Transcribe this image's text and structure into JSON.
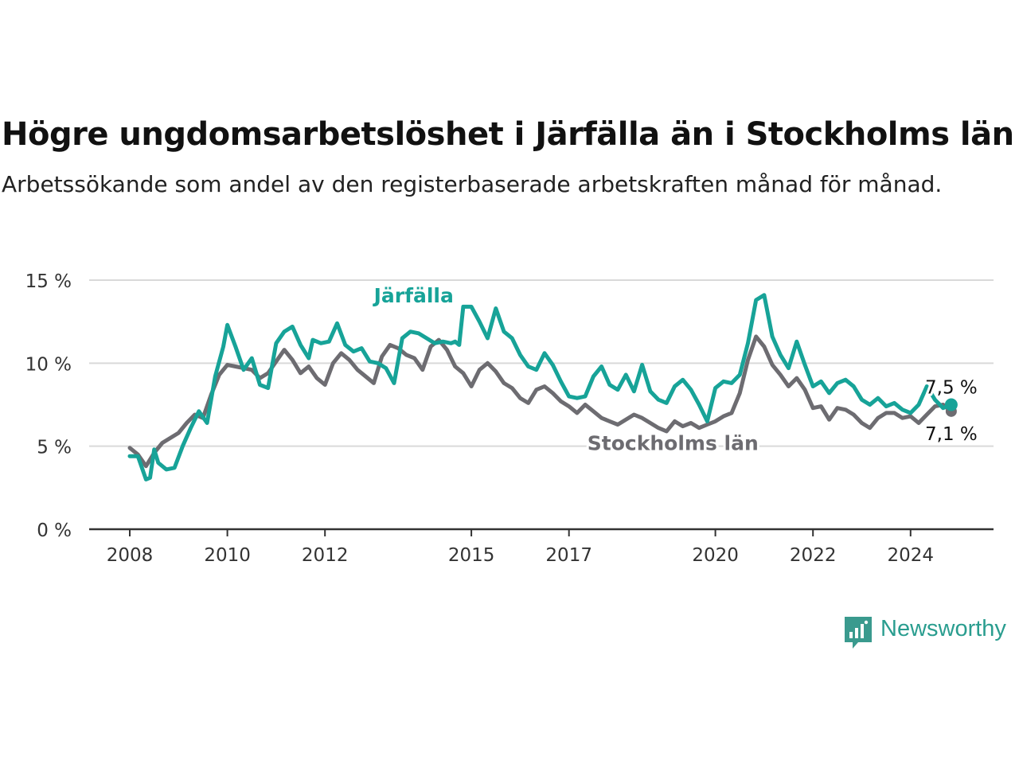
{
  "title": "Högre ungdomsarbetslöshet i Järfälla än i Stockholms län",
  "subtitle": "Arbetssökande som andel av den registerbaserade arbetskraften månad för månad.",
  "brand": "Newsworthy",
  "colors": {
    "jarfalla": "#17a398",
    "lan": "#6d6c71",
    "grid": "#d9d9d9",
    "axis": "#333333",
    "brand": "#3a9a8e"
  },
  "chart_data": {
    "type": "line",
    "title": "Högre ungdomsarbetslöshet i Järfälla än i Stockholms län",
    "subtitle": "Arbetssökande som andel av den registerbaserade arbetskraften månad för månad.",
    "xlabel": "",
    "ylabel": "",
    "y_unit": "%",
    "xlim": [
      "2008-01",
      "2025-04"
    ],
    "ylim": [
      0,
      15
    ],
    "y_ticks": [
      0,
      5,
      10,
      15
    ],
    "y_tick_labels": [
      "0 %",
      "5 %",
      "10 %",
      "15 %"
    ],
    "x_ticks": [
      "2008",
      "2010",
      "2012",
      "2015",
      "2017",
      "2020",
      "2022",
      "2024"
    ],
    "x_tick_dates": [
      "2008-01",
      "2010-01",
      "2012-01",
      "2015-01",
      "2017-01",
      "2020-01",
      "2022-01",
      "2024-01"
    ],
    "grid": "horizontal",
    "legend": "inline labels",
    "series": [
      {
        "name": "Järfälla",
        "color": "#17a398",
        "end_label": "7,5 %",
        "points": [
          [
            "2008-01",
            4.4
          ],
          [
            "2008-03",
            4.4
          ],
          [
            "2008-05",
            3.0
          ],
          [
            "2008-06",
            3.1
          ],
          [
            "2008-07",
            4.8
          ],
          [
            "2008-08",
            4.0
          ],
          [
            "2008-10",
            3.6
          ],
          [
            "2008-12",
            3.7
          ],
          [
            "2009-02",
            5.0
          ],
          [
            "2009-04",
            6.1
          ],
          [
            "2009-06",
            7.1
          ],
          [
            "2009-08",
            6.4
          ],
          [
            "2009-10",
            9.2
          ],
          [
            "2009-12",
            11.0
          ],
          [
            "2010-01",
            12.3
          ],
          [
            "2010-03",
            11.0
          ],
          [
            "2010-05",
            9.6
          ],
          [
            "2010-07",
            10.3
          ],
          [
            "2010-09",
            8.7
          ],
          [
            "2010-11",
            8.5
          ],
          [
            "2011-01",
            11.2
          ],
          [
            "2011-03",
            11.9
          ],
          [
            "2011-05",
            12.2
          ],
          [
            "2011-07",
            11.1
          ],
          [
            "2011-09",
            10.3
          ],
          [
            "2011-10",
            11.4
          ],
          [
            "2011-12",
            11.2
          ],
          [
            "2012-02",
            11.3
          ],
          [
            "2012-04",
            12.4
          ],
          [
            "2012-06",
            11.1
          ],
          [
            "2012-08",
            10.7
          ],
          [
            "2012-10",
            10.9
          ],
          [
            "2012-12",
            10.1
          ],
          [
            "2013-02",
            10.0
          ],
          [
            "2013-04",
            9.7
          ],
          [
            "2013-06",
            8.8
          ],
          [
            "2013-08",
            11.5
          ],
          [
            "2013-10",
            11.9
          ],
          [
            "2013-12",
            11.8
          ],
          [
            "2014-02",
            11.5
          ],
          [
            "2014-04",
            11.2
          ],
          [
            "2014-06",
            11.3
          ],
          [
            "2014-08",
            11.2
          ],
          [
            "2014-09",
            11.3
          ],
          [
            "2014-10",
            11.1
          ],
          [
            "2014-11",
            13.4
          ]
        ],
        "points_2": [
          [
            "2015-01",
            13.4
          ],
          [
            "2015-03",
            12.5
          ],
          [
            "2015-05",
            11.5
          ],
          [
            "2015-07",
            13.3
          ],
          [
            "2015-09",
            11.9
          ],
          [
            "2015-11",
            11.5
          ],
          [
            "2016-01",
            10.5
          ],
          [
            "2016-03",
            9.8
          ],
          [
            "2016-05",
            9.6
          ],
          [
            "2016-07",
            10.6
          ],
          [
            "2016-09",
            9.9
          ],
          [
            "2016-11",
            8.9
          ],
          [
            "2017-01",
            8.0
          ],
          [
            "2017-03",
            7.9
          ],
          [
            "2017-05",
            8.0
          ],
          [
            "2017-07",
            9.2
          ],
          [
            "2017-09",
            9.8
          ],
          [
            "2017-11",
            8.7
          ],
          [
            "2018-01",
            8.4
          ],
          [
            "2018-03",
            9.3
          ],
          [
            "2018-05",
            8.3
          ],
          [
            "2018-07",
            9.9
          ],
          [
            "2018-09",
            8.3
          ],
          [
            "2018-11",
            7.8
          ],
          [
            "2019-01",
            7.6
          ],
          [
            "2019-03",
            8.6
          ],
          [
            "2019-05",
            9.0
          ],
          [
            "2019-07",
            8.4
          ],
          [
            "2019-09",
            7.5
          ],
          [
            "2019-11",
            6.5
          ],
          [
            "2020-01",
            8.5
          ],
          [
            "2020-03",
            8.9
          ],
          [
            "2020-05",
            8.8
          ],
          [
            "2020-07",
            9.3
          ],
          [
            "2020-09",
            11.2
          ],
          [
            "2020-11",
            13.8
          ],
          [
            "2021-01",
            14.1
          ],
          [
            "2021-03",
            11.6
          ],
          [
            "2021-05",
            10.5
          ],
          [
            "2021-07",
            9.7
          ],
          [
            "2021-09",
            11.3
          ],
          [
            "2021-11",
            9.9
          ],
          [
            "2022-01",
            8.6
          ],
          [
            "2022-03",
            8.9
          ],
          [
            "2022-05",
            8.2
          ],
          [
            "2022-07",
            8.8
          ],
          [
            "2022-09",
            9.0
          ],
          [
            "2022-11",
            8.6
          ],
          [
            "2023-01",
            7.8
          ],
          [
            "2023-03",
            7.5
          ],
          [
            "2023-05",
            7.9
          ],
          [
            "2023-07",
            7.4
          ],
          [
            "2023-09",
            7.6
          ],
          [
            "2023-11",
            7.2
          ],
          [
            "2024-01",
            7.0
          ],
          [
            "2024-03",
            7.5
          ],
          [
            "2024-05",
            8.6
          ],
          [
            "2024-07",
            7.8
          ],
          [
            "2024-09",
            7.3
          ],
          [
            "2024-11",
            7.5
          ]
        ]
      },
      {
        "name": "Stockholms län",
        "color": "#6d6c71",
        "end_label": "7,1 %",
        "points": [
          [
            "2008-01",
            4.9
          ],
          [
            "2008-03",
            4.5
          ],
          [
            "2008-05",
            3.8
          ],
          [
            "2008-07",
            4.6
          ],
          [
            "2008-09",
            5.2
          ],
          [
            "2008-11",
            5.5
          ],
          [
            "2009-01",
            5.8
          ],
          [
            "2009-03",
            6.4
          ],
          [
            "2009-05",
            6.9
          ],
          [
            "2009-07",
            6.7
          ],
          [
            "2009-09",
            8.1
          ],
          [
            "2009-11",
            9.3
          ],
          [
            "2010-01",
            9.9
          ],
          [
            "2010-03",
            9.8
          ],
          [
            "2010-05",
            9.7
          ],
          [
            "2010-07",
            9.6
          ],
          [
            "2010-09",
            9.1
          ],
          [
            "2010-11",
            9.4
          ],
          [
            "2011-01",
            10.1
          ],
          [
            "2011-03",
            10.8
          ],
          [
            "2011-05",
            10.2
          ],
          [
            "2011-07",
            9.4
          ],
          [
            "2011-09",
            9.8
          ],
          [
            "2011-11",
            9.1
          ],
          [
            "2012-01",
            8.7
          ],
          [
            "2012-03",
            10.0
          ],
          [
            "2012-05",
            10.6
          ],
          [
            "2012-07",
            10.2
          ],
          [
            "2012-09",
            9.6
          ],
          [
            "2012-11",
            9.2
          ],
          [
            "2013-01",
            8.8
          ],
          [
            "2013-03",
            10.4
          ],
          [
            "2013-05",
            11.1
          ],
          [
            "2013-07",
            10.9
          ],
          [
            "2013-09",
            10.5
          ],
          [
            "2013-11",
            10.3
          ],
          [
            "2014-01",
            9.6
          ],
          [
            "2014-03",
            11.0
          ],
          [
            "2014-05",
            11.4
          ],
          [
            "2014-07",
            10.8
          ],
          [
            "2014-09",
            9.8
          ],
          [
            "2014-11",
            9.4
          ],
          [
            "2015-01",
            8.6
          ],
          [
            "2015-03",
            9.6
          ],
          [
            "2015-05",
            10.0
          ],
          [
            "2015-07",
            9.5
          ],
          [
            "2015-09",
            8.8
          ],
          [
            "2015-11",
            8.5
          ],
          [
            "2016-01",
            7.9
          ],
          [
            "2016-03",
            7.6
          ],
          [
            "2016-05",
            8.4
          ],
          [
            "2016-07",
            8.6
          ],
          [
            "2016-09",
            8.2
          ],
          [
            "2016-11",
            7.7
          ],
          [
            "2017-01",
            7.4
          ],
          [
            "2017-03",
            7.0
          ],
          [
            "2017-05",
            7.5
          ],
          [
            "2017-07",
            7.1
          ],
          [
            "2017-09",
            6.7
          ],
          [
            "2017-11",
            6.5
          ],
          [
            "2018-01",
            6.3
          ],
          [
            "2018-03",
            6.6
          ],
          [
            "2018-05",
            6.9
          ],
          [
            "2018-07",
            6.7
          ],
          [
            "2018-09",
            6.4
          ],
          [
            "2018-11",
            6.1
          ],
          [
            "2019-01",
            5.9
          ],
          [
            "2019-03",
            6.5
          ],
          [
            "2019-05",
            6.2
          ],
          [
            "2019-07",
            6.4
          ],
          [
            "2019-09",
            6.1
          ],
          [
            "2019-11",
            6.3
          ],
          [
            "2020-01",
            6.5
          ],
          [
            "2020-03",
            6.8
          ],
          [
            "2020-05",
            7.0
          ],
          [
            "2020-07",
            8.2
          ],
          [
            "2020-09",
            10.2
          ],
          [
            "2020-11",
            11.6
          ],
          [
            "2021-01",
            11.0
          ],
          [
            "2021-03",
            9.9
          ],
          [
            "2021-05",
            9.3
          ],
          [
            "2021-07",
            8.6
          ],
          [
            "2021-09",
            9.1
          ],
          [
            "2021-11",
            8.4
          ],
          [
            "2022-01",
            7.3
          ],
          [
            "2022-03",
            7.4
          ],
          [
            "2022-05",
            6.6
          ],
          [
            "2022-07",
            7.3
          ],
          [
            "2022-09",
            7.2
          ],
          [
            "2022-11",
            6.9
          ],
          [
            "2023-01",
            6.4
          ],
          [
            "2023-03",
            6.1
          ],
          [
            "2023-05",
            6.7
          ],
          [
            "2023-07",
            7.0
          ],
          [
            "2023-09",
            7.0
          ],
          [
            "2023-11",
            6.7
          ],
          [
            "2024-01",
            6.8
          ],
          [
            "2024-03",
            6.4
          ],
          [
            "2024-05",
            6.9
          ],
          [
            "2024-07",
            7.4
          ],
          [
            "2024-09",
            7.5
          ],
          [
            "2024-11",
            7.1
          ]
        ]
      }
    ],
    "annotations": [
      {
        "text": "Järfälla",
        "series": "Järfälla",
        "at": [
          "2014-11",
          14.1
        ]
      },
      {
        "text": "Stockholms län",
        "series": "Stockholms län",
        "at": [
          "2019-01",
          5.2
        ]
      }
    ]
  }
}
